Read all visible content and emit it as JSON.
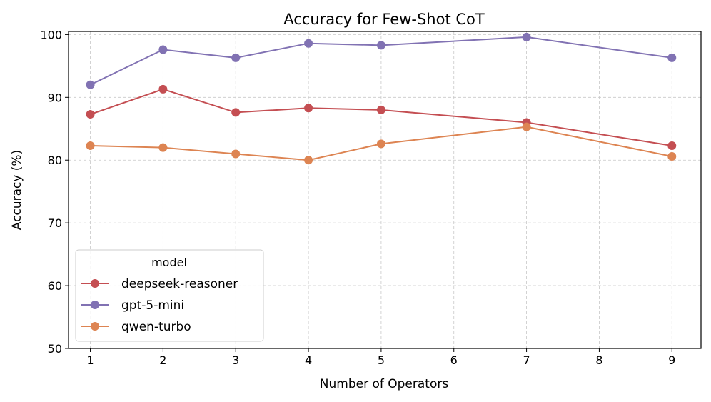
{
  "chart_data": {
    "type": "line",
    "title": "Accuracy for Few-Shot CoT",
    "xlabel": "Number of Operators",
    "ylabel": "Accuracy (%)",
    "xlim": [
      0.7,
      9.4
    ],
    "ylim": [
      50,
      100.5
    ],
    "xticks": [
      1,
      2,
      3,
      4,
      5,
      6,
      7,
      8,
      9
    ],
    "yticks": [
      50,
      60,
      70,
      80,
      90,
      100
    ],
    "grid": true,
    "legend": {
      "title": "model",
      "position": "lower-left"
    },
    "series": [
      {
        "name": "deepseek-reasoner",
        "color": "#c44e52",
        "x": [
          1,
          2,
          3,
          4,
          5,
          7,
          9
        ],
        "y": [
          87.3,
          91.3,
          87.6,
          88.3,
          88.0,
          86.0,
          82.3
        ]
      },
      {
        "name": "gpt-5-mini",
        "color": "#8172b3",
        "x": [
          1,
          2,
          3,
          4,
          5,
          7,
          9
        ],
        "y": [
          92.0,
          97.6,
          96.3,
          98.6,
          98.3,
          99.6,
          96.3
        ]
      },
      {
        "name": "qwen-turbo",
        "color": "#dd8452",
        "x": [
          1,
          2,
          3,
          4,
          5,
          7,
          9
        ],
        "y": [
          82.3,
          82.0,
          81.0,
          80.0,
          82.6,
          85.3,
          80.6
        ]
      }
    ]
  }
}
